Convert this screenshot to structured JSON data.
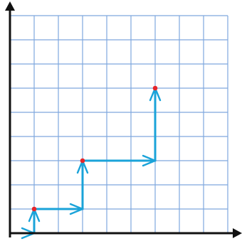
{
  "grid": {
    "columns": 9,
    "rows": 9,
    "line_color": "#7fa8de"
  },
  "axes": {
    "color": "#111111",
    "arrow_directions": [
      "up",
      "right"
    ]
  },
  "path": {
    "color": "#1aa3d9",
    "segments": [
      {
        "from": [
          0,
          0
        ],
        "to": [
          1,
          0
        ]
      },
      {
        "from": [
          1,
          0
        ],
        "to": [
          1,
          1
        ]
      },
      {
        "from": [
          1,
          1
        ],
        "to": [
          3,
          1
        ]
      },
      {
        "from": [
          3,
          1
        ],
        "to": [
          3,
          3
        ]
      },
      {
        "from": [
          3,
          3
        ],
        "to": [
          6,
          3
        ]
      },
      {
        "from": [
          6,
          3
        ],
        "to": [
          6,
          6
        ]
      }
    ]
  },
  "points": {
    "color": "#e5262b",
    "items": [
      [
        1,
        1
      ],
      [
        3,
        3
      ],
      [
        6,
        6
      ]
    ]
  }
}
